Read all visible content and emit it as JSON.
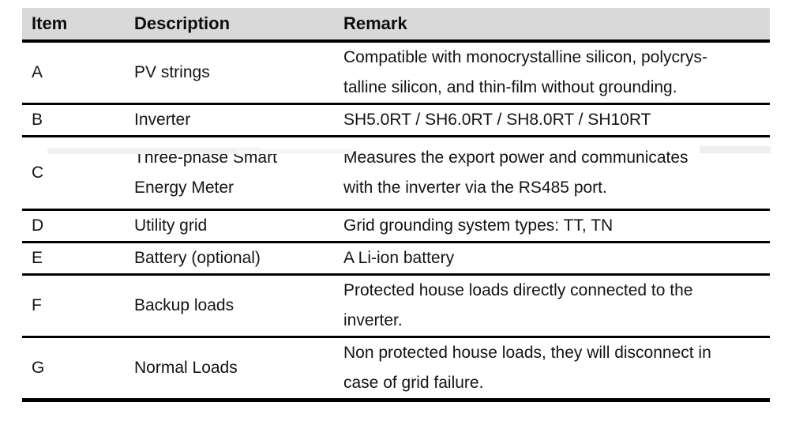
{
  "colors": {
    "page_background": "#ffffff",
    "header_background": "#d9d9d9",
    "border": "#000000",
    "text": "#141414"
  },
  "table": {
    "headers": [
      "Item",
      "Description",
      "Remark"
    ],
    "rows": [
      {
        "item": "A",
        "description": "PV strings",
        "remark": "Compatible with monocrystalline silicon, polycrys-\ntalline silicon, and thin-film without grounding."
      },
      {
        "item": "B",
        "description": "Inverter",
        "remark": "SH5.0RT / SH6.0RT / SH8.0RT / SH10RT"
      },
      {
        "item": "C",
        "description": "Three-phase Smart\nEnergy Meter",
        "remark": "Measures the export power and communicates\nwith the inverter via the RS485 port."
      },
      {
        "item": "D",
        "description": "Utility grid",
        "remark": "Grid grounding system types: TT, TN"
      },
      {
        "item": "E",
        "description": "Battery (optional)",
        "remark": "A Li-ion battery"
      },
      {
        "item": "F",
        "description": "Backup loads",
        "remark": "Protected house loads directly connected to the\ninverter."
      },
      {
        "item": "G",
        "description": "Normal Loads",
        "remark": "Non protected house loads, they will disconnect in\ncase of grid failure."
      }
    ]
  }
}
